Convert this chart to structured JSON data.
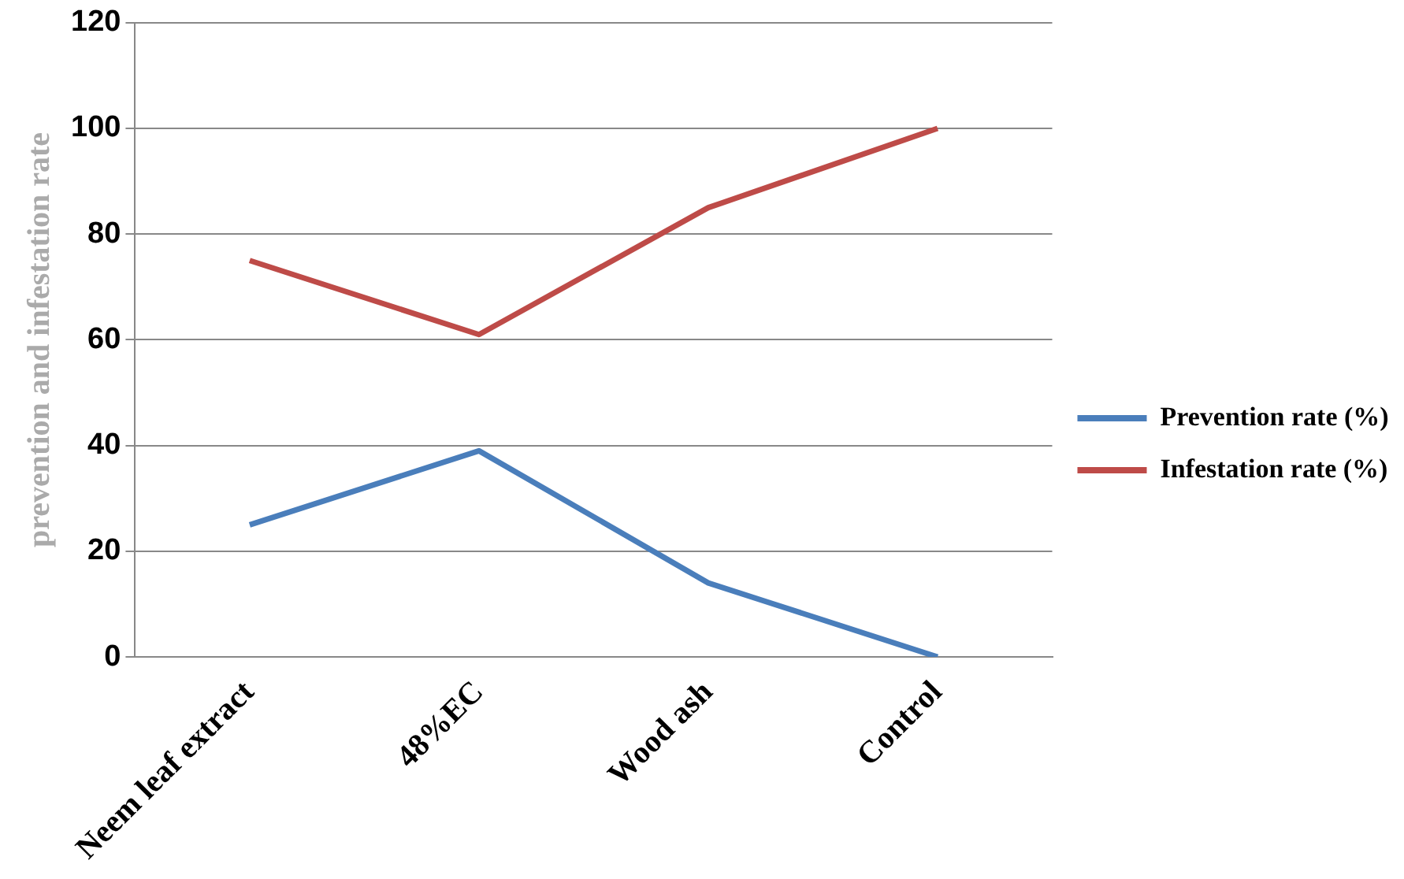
{
  "chart_data": {
    "type": "line",
    "ylabel": "prevention and infestation rate",
    "categories": [
      "Neem leaf extract",
      "48%EC",
      "Wood ash",
      "Control"
    ],
    "series": [
      {
        "name": "Prevention rate (%)",
        "color": "#4a7ebb",
        "values": [
          25,
          39,
          14,
          0
        ]
      },
      {
        "name": "Infestation rate (%)",
        "color": "#be4b48",
        "values": [
          75,
          61,
          85,
          100
        ]
      }
    ],
    "ylim": [
      0,
      120
    ],
    "yticks": [
      0,
      20,
      40,
      60,
      80,
      100,
      120
    ],
    "grid": "y",
    "legend": "right",
    "marker": "none",
    "line_style": "solid"
  }
}
